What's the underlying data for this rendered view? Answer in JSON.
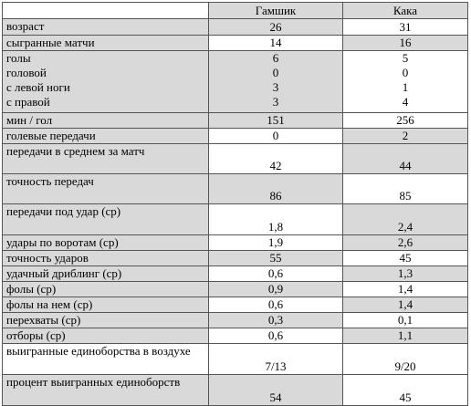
{
  "table": {
    "header": [
      "",
      "Гамшик",
      "Кака"
    ],
    "rows": [
      [
        [
          "возраст"
        ],
        [
          "26"
        ],
        [
          "31"
        ]
      ],
      [
        [
          "сыгранные матчи"
        ],
        [
          "14"
        ],
        [
          "16"
        ]
      ],
      [
        [
          "голы",
          "головой",
          "с левой ноги",
          "с правой"
        ],
        [
          "6",
          "0",
          "3",
          "3"
        ],
        [
          "5",
          "0",
          "1",
          "4"
        ]
      ],
      [
        [
          "мин / гол"
        ],
        [
          "151"
        ],
        [
          "256"
        ]
      ],
      [
        [
          "голевые передачи"
        ],
        [
          "0"
        ],
        [
          "2"
        ]
      ],
      [
        [
          "передачи в среднем за матч"
        ],
        [
          "42"
        ],
        [
          "44"
        ]
      ],
      [
        [
          "точность передач"
        ],
        [
          "86"
        ],
        [
          "85"
        ]
      ],
      [
        [
          "передачи под удар (ср)"
        ],
        [
          "1,8"
        ],
        [
          "2,4"
        ]
      ],
      [
        [
          "удары по воротам (ср)"
        ],
        [
          "1,9"
        ],
        [
          "2,6"
        ]
      ],
      [
        [
          "точность ударов"
        ],
        [
          "55"
        ],
        [
          "45"
        ]
      ],
      [
        [
          "удачный дриблинг (ср)"
        ],
        [
          "0,6"
        ],
        [
          "1,3"
        ]
      ],
      [
        [
          "фолы (ср)"
        ],
        [
          "0,9"
        ],
        [
          "1,4"
        ]
      ],
      [
        [
          "фолы на нем (ср)"
        ],
        [
          "0,6"
        ],
        [
          "1,4"
        ]
      ],
      [
        [
          "перехваты (ср)"
        ],
        [
          "0,3"
        ],
        [
          "0,1"
        ]
      ],
      [
        [
          "отборы (ср)"
        ],
        [
          "0,6"
        ],
        [
          "1,1"
        ]
      ],
      [
        [
          "выигранные единоборства в воздухе"
        ],
        [
          "7/13"
        ],
        [
          "9/20"
        ]
      ],
      [
        [
          "процент выигранных единоборств"
        ],
        [
          "54"
        ],
        [
          "45"
        ]
      ]
    ]
  }
}
